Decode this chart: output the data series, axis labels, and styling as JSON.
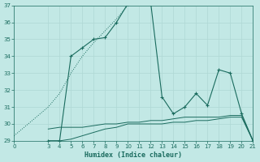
{
  "xlabel": "Humidex (Indice chaleur)",
  "bg_color": "#c2e8e5",
  "grid_color": "#afd8d4",
  "line_color": "#1a6b5e",
  "xlim": [
    0,
    21
  ],
  "ylim": [
    29,
    37
  ],
  "yticks": [
    29,
    30,
    31,
    32,
    33,
    34,
    35,
    36,
    37
  ],
  "xticks": [
    0,
    3,
    4,
    5,
    6,
    7,
    8,
    9,
    10,
    11,
    12,
    13,
    14,
    15,
    16,
    17,
    18,
    19,
    20,
    21
  ],
  "dotted_x": [
    0,
    3,
    4,
    5,
    6,
    7,
    8,
    9,
    10,
    11
  ],
  "dotted_y": [
    29.3,
    31.0,
    31.8,
    33.0,
    34.0,
    34.8,
    35.5,
    36.2,
    37.0,
    37.2
  ],
  "main_x": [
    3,
    4,
    5,
    6,
    7,
    8,
    9,
    10,
    11,
    12,
    13,
    14,
    15,
    16,
    17,
    18,
    19,
    20,
    21
  ],
  "main_y": [
    29.0,
    29.0,
    34.0,
    34.5,
    35.0,
    35.1,
    36.0,
    37.1,
    37.2,
    37.2,
    31.6,
    30.6,
    31.0,
    31.8,
    31.1,
    33.2,
    33.0,
    30.6,
    29.0
  ],
  "flat1_x": [
    3,
    4,
    5,
    6,
    7,
    8,
    9,
    10,
    11,
    12,
    13,
    14,
    15,
    16,
    17,
    18,
    19,
    20,
    21
  ],
  "flat1_y": [
    29.0,
    29.0,
    29.1,
    29.3,
    29.5,
    29.7,
    29.8,
    30.0,
    30.0,
    30.0,
    30.0,
    30.1,
    30.1,
    30.2,
    30.2,
    30.3,
    30.4,
    30.4,
    29.0
  ],
  "flat2_x": [
    3,
    4,
    5,
    6,
    7,
    8,
    9,
    10,
    11,
    12,
    13,
    14,
    15,
    16,
    17,
    18,
    19,
    20,
    21
  ],
  "flat2_y": [
    29.7,
    29.8,
    29.8,
    29.8,
    29.9,
    30.0,
    30.0,
    30.1,
    30.1,
    30.2,
    30.2,
    30.3,
    30.4,
    30.4,
    30.4,
    30.4,
    30.5,
    30.5,
    29.0
  ]
}
